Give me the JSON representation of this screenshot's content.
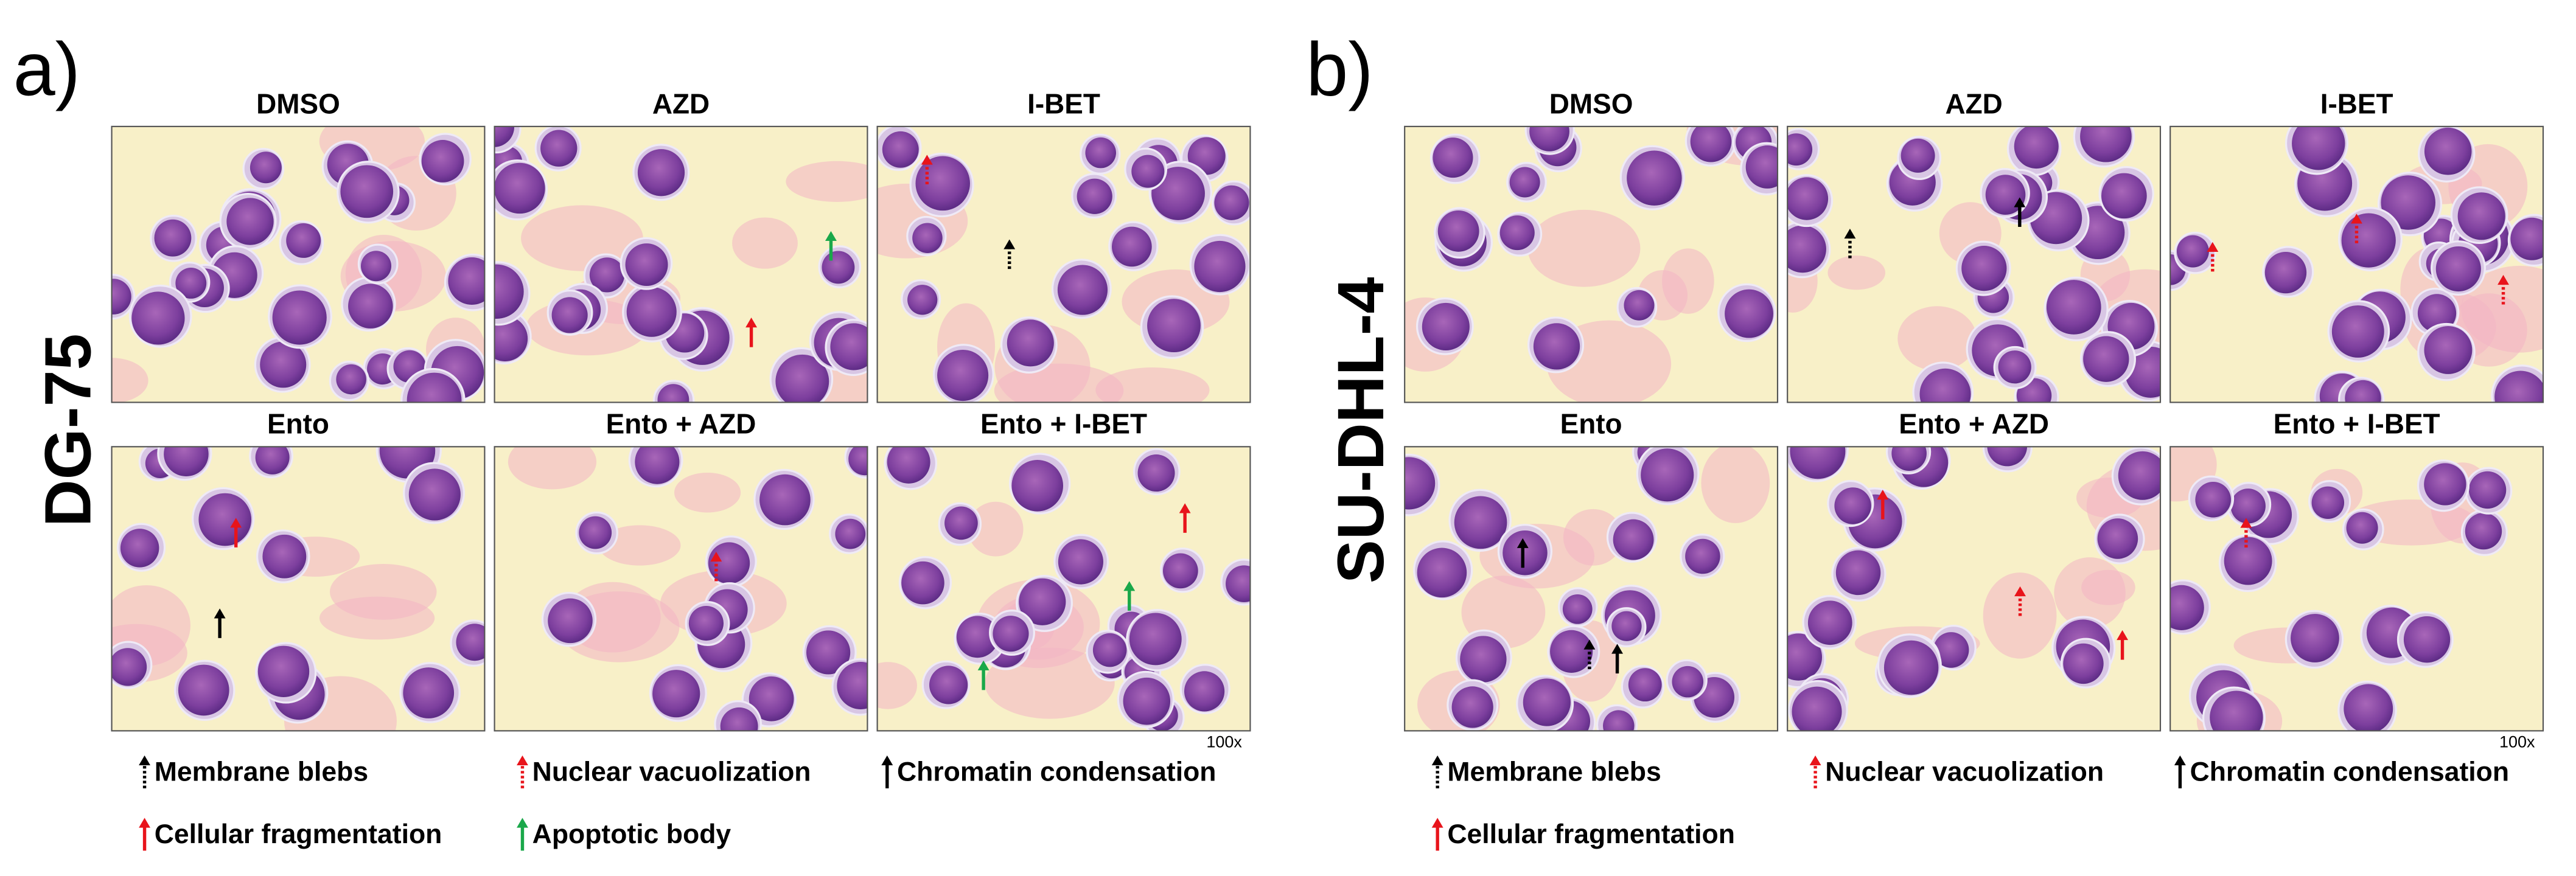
{
  "panels": [
    {
      "label": "a)",
      "cell_line": "DG-75",
      "images": [
        {
          "title": "DMSO"
        },
        {
          "title": "AZD"
        },
        {
          "title": "I-BET"
        },
        {
          "title": "Ento"
        },
        {
          "title": "Ento + AZD"
        },
        {
          "title": "Ento + I-BET"
        }
      ],
      "magnification": "100x",
      "legend": [
        {
          "text": "Membrane blebs",
          "color": "#000000",
          "style": "dotted"
        },
        {
          "text": "Nuclear vacuolization",
          "color": "#e8141b",
          "style": "dotted"
        },
        {
          "text": "Chromatin condensation",
          "color": "#000000",
          "style": "solid"
        },
        {
          "text": "Cellular fragmentation",
          "color": "#e8141b",
          "style": "solid"
        },
        {
          "text": "Apoptotic body",
          "color": "#1aa84a",
          "style": "solid"
        }
      ]
    },
    {
      "label": "b)",
      "cell_line": "SU-DHL-4",
      "images": [
        {
          "title": "DMSO"
        },
        {
          "title": "AZD"
        },
        {
          "title": "I-BET"
        },
        {
          "title": "Ento"
        },
        {
          "title": "Ento + AZD"
        },
        {
          "title": "Ento + I-BET"
        }
      ],
      "magnification": "100x",
      "legend": [
        {
          "text": "Membrane blebs",
          "color": "#000000",
          "style": "dotted"
        },
        {
          "text": "Nuclear vacuolization",
          "color": "#e8141b",
          "style": "dotted"
        },
        {
          "text": "Chromatin condensation",
          "color": "#000000",
          "style": "solid"
        },
        {
          "text": "Cellular fragmentation",
          "color": "#e8141b",
          "style": "solid"
        }
      ]
    }
  ]
}
